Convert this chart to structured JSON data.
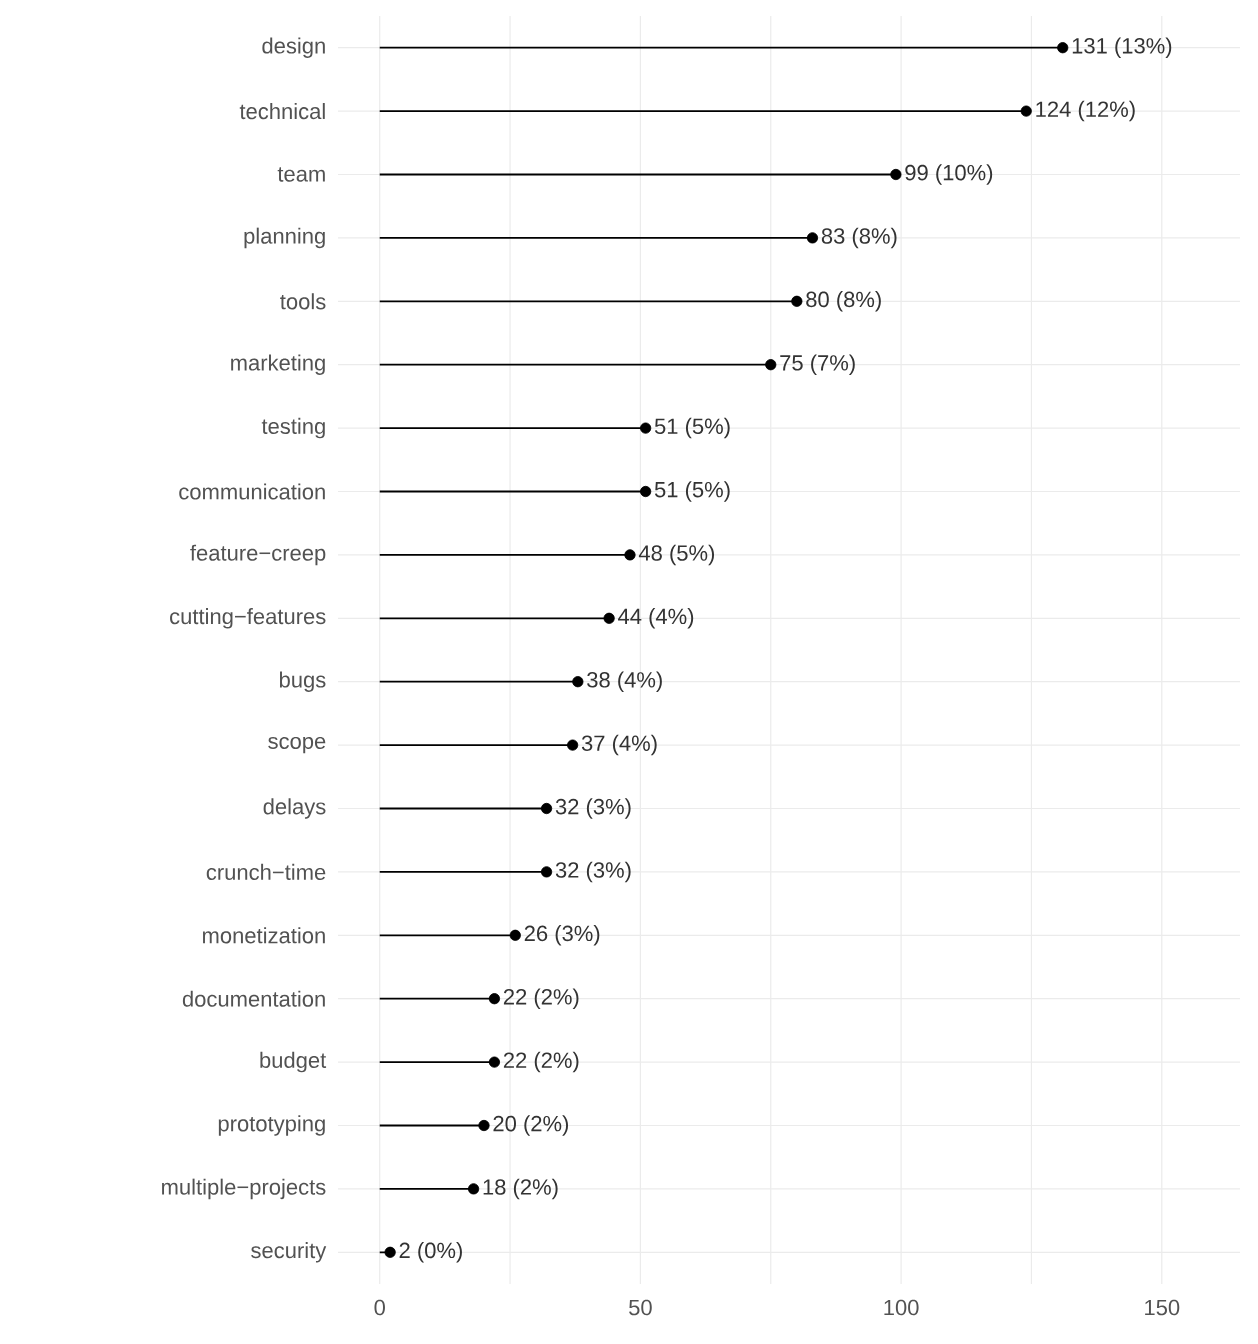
{
  "chart_data": {
    "type": "lollipop",
    "orientation": "horizontal",
    "marker": "circle",
    "grid": true,
    "color": "#000000",
    "categories": [
      "design",
      "technical",
      "team",
      "planning",
      "tools",
      "marketing",
      "testing",
      "communication",
      "feature−creep",
      "cutting−features",
      "bugs",
      "scope",
      "delays",
      "crunch−time",
      "monetization",
      "documentation",
      "budget",
      "prototyping",
      "multiple−projects",
      "security"
    ],
    "values": [
      131,
      124,
      99,
      83,
      80,
      75,
      51,
      51,
      48,
      44,
      38,
      37,
      32,
      32,
      26,
      22,
      22,
      20,
      18,
      2
    ],
    "value_labels": [
      "131 (13%)",
      "124 (12%)",
      "99 (10%)",
      "83 (8%)",
      "80 (8%)",
      "75 (7%)",
      "51 (5%)",
      "51 (5%)",
      "48 (5%)",
      "44 (4%)",
      "38 (4%)",
      "37 (4%)",
      "32 (3%)",
      "32 (3%)",
      "26 (3%)",
      "22 (2%)",
      "22 (2%)",
      "20 (2%)",
      "18 (2%)",
      "2 (0%)"
    ],
    "xlim": [
      -8,
      165
    ],
    "xticks": [
      0,
      {
        "value": 25,
        "label": null
      },
      50,
      {
        "value": 75,
        "label": null
      },
      100,
      {
        "value": 125,
        "label": null
      },
      150
    ]
  }
}
